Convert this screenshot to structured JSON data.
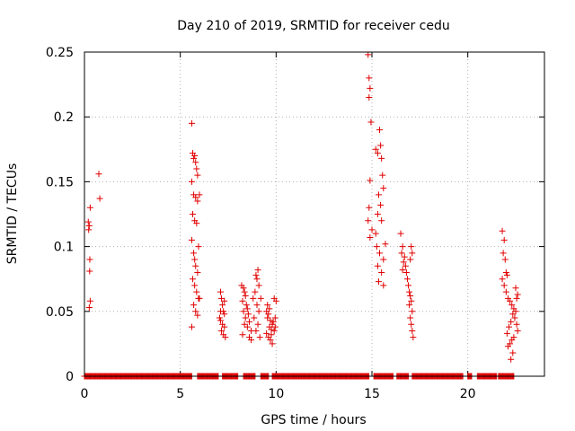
{
  "chart_data": {
    "type": "scatter",
    "title": "Day 210 of 2019, SRMTID for receiver cedu",
    "xlabel": "GPS time / hours",
    "ylabel": "SRMTID / TECUs",
    "xlim": [
      0,
      24
    ],
    "ylim": [
      0,
      0.25
    ],
    "xticks": [
      0,
      5,
      10,
      15,
      20
    ],
    "yticks": [
      0,
      0.05,
      0.1,
      0.15,
      0.2,
      0.25
    ],
    "xtick_labels": [
      "0",
      "5",
      "10",
      "15",
      "20"
    ],
    "ytick_labels": [
      "0",
      "0.05",
      "0.1",
      "0.15",
      "0.2",
      "0.25"
    ],
    "grid": true,
    "marker": "+",
    "color": "#e00000",
    "series": [
      {
        "name": "SRMTID",
        "points": [
          [
            0.2,
            0.119
          ],
          [
            0.25,
            0.116
          ],
          [
            0.22,
            0.113
          ],
          [
            0.3,
            0.13
          ],
          [
            0.28,
            0.09
          ],
          [
            0.27,
            0.081
          ],
          [
            0.3,
            0.058
          ],
          [
            0.25,
            0.053
          ],
          [
            0.75,
            0.156
          ],
          [
            0.8,
            0.137
          ],
          [
            5.6,
            0.195
          ],
          [
            5.65,
            0.172
          ],
          [
            5.7,
            0.168
          ],
          [
            5.75,
            0.17
          ],
          [
            5.8,
            0.165
          ],
          [
            5.85,
            0.16
          ],
          [
            5.9,
            0.155
          ],
          [
            5.6,
            0.15
          ],
          [
            5.7,
            0.14
          ],
          [
            5.8,
            0.138
          ],
          [
            5.9,
            0.135
          ],
          [
            6.0,
            0.14
          ],
          [
            5.65,
            0.125
          ],
          [
            5.75,
            0.12
          ],
          [
            5.85,
            0.118
          ],
          [
            5.95,
            0.1
          ],
          [
            5.6,
            0.105
          ],
          [
            5.7,
            0.095
          ],
          [
            5.8,
            0.085
          ],
          [
            5.9,
            0.08
          ],
          [
            5.65,
            0.075
          ],
          [
            5.75,
            0.07
          ],
          [
            5.85,
            0.065
          ],
          [
            5.95,
            0.06
          ],
          [
            5.7,
            0.055
          ],
          [
            5.8,
            0.05
          ],
          [
            5.9,
            0.047
          ],
          [
            5.6,
            0.038
          ],
          [
            6.0,
            0.06
          ],
          [
            5.75,
            0.09
          ],
          [
            7.1,
            0.065
          ],
          [
            7.15,
            0.06
          ],
          [
            7.2,
            0.055
          ],
          [
            7.25,
            0.05
          ],
          [
            7.3,
            0.048
          ],
          [
            7.05,
            0.045
          ],
          [
            7.1,
            0.043
          ],
          [
            7.2,
            0.04
          ],
          [
            7.3,
            0.038
          ],
          [
            7.15,
            0.035
          ],
          [
            7.25,
            0.032
          ],
          [
            7.35,
            0.03
          ],
          [
            7.1,
            0.05
          ],
          [
            7.3,
            0.058
          ],
          [
            8.2,
            0.07
          ],
          [
            8.3,
            0.068
          ],
          [
            8.35,
            0.065
          ],
          [
            8.4,
            0.062
          ],
          [
            8.25,
            0.058
          ],
          [
            8.45,
            0.055
          ],
          [
            8.5,
            0.052
          ],
          [
            8.3,
            0.05
          ],
          [
            8.55,
            0.048
          ],
          [
            8.4,
            0.045
          ],
          [
            8.6,
            0.042
          ],
          [
            8.35,
            0.04
          ],
          [
            8.5,
            0.038
          ],
          [
            8.7,
            0.035
          ],
          [
            8.25,
            0.032
          ],
          [
            8.6,
            0.03
          ],
          [
            8.8,
            0.06
          ],
          [
            8.9,
            0.065
          ],
          [
            9.0,
            0.075
          ],
          [
            9.05,
            0.082
          ],
          [
            8.95,
            0.078
          ],
          [
            9.1,
            0.07
          ],
          [
            9.0,
            0.055
          ],
          [
            9.1,
            0.05
          ],
          [
            8.85,
            0.045
          ],
          [
            9.05,
            0.04
          ],
          [
            8.95,
            0.035
          ],
          [
            9.15,
            0.03
          ],
          [
            8.7,
            0.028
          ],
          [
            9.2,
            0.06
          ],
          [
            9.5,
            0.05
          ],
          [
            9.6,
            0.048
          ],
          [
            9.55,
            0.045
          ],
          [
            9.7,
            0.043
          ],
          [
            9.8,
            0.04
          ],
          [
            9.65,
            0.038
          ],
          [
            9.75,
            0.036
          ],
          [
            9.9,
            0.035
          ],
          [
            9.5,
            0.033
          ],
          [
            9.6,
            0.03
          ],
          [
            9.7,
            0.028
          ],
          [
            9.8,
            0.025
          ],
          [
            9.85,
            0.042
          ],
          [
            9.95,
            0.045
          ],
          [
            9.55,
            0.055
          ],
          [
            9.9,
            0.06
          ],
          [
            10.0,
            0.058
          ],
          [
            9.65,
            0.052
          ],
          [
            9.75,
            0.032
          ],
          [
            9.95,
            0.038
          ],
          [
            14.8,
            0.248
          ],
          [
            14.85,
            0.23
          ],
          [
            14.9,
            0.222
          ],
          [
            14.85,
            0.215
          ],
          [
            14.95,
            0.196
          ],
          [
            14.9,
            0.151
          ],
          [
            14.85,
            0.13
          ],
          [
            14.8,
            0.12
          ],
          [
            15.0,
            0.113
          ],
          [
            14.9,
            0.107
          ],
          [
            15.2,
            0.175
          ],
          [
            15.3,
            0.172
          ],
          [
            15.4,
            0.19
          ],
          [
            15.45,
            0.178
          ],
          [
            15.5,
            0.168
          ],
          [
            15.55,
            0.155
          ],
          [
            15.6,
            0.145
          ],
          [
            15.35,
            0.14
          ],
          [
            15.45,
            0.132
          ],
          [
            15.3,
            0.125
          ],
          [
            15.5,
            0.12
          ],
          [
            15.2,
            0.11
          ],
          [
            15.25,
            0.1
          ],
          [
            15.4,
            0.095
          ],
          [
            15.6,
            0.09
          ],
          [
            15.3,
            0.085
          ],
          [
            15.5,
            0.08
          ],
          [
            15.35,
            0.073
          ],
          [
            15.6,
            0.07
          ],
          [
            15.7,
            0.102
          ],
          [
            16.5,
            0.11
          ],
          [
            16.6,
            0.1
          ],
          [
            16.55,
            0.095
          ],
          [
            16.7,
            0.092
          ],
          [
            16.65,
            0.088
          ],
          [
            16.75,
            0.085
          ],
          [
            16.6,
            0.082
          ],
          [
            16.8,
            0.08
          ],
          [
            16.85,
            0.075
          ],
          [
            16.9,
            0.07
          ],
          [
            16.95,
            0.065
          ],
          [
            17.0,
            0.062
          ],
          [
            17.05,
            0.058
          ],
          [
            16.95,
            0.055
          ],
          [
            17.1,
            0.05
          ],
          [
            17.0,
            0.045
          ],
          [
            17.05,
            0.04
          ],
          [
            17.1,
            0.035
          ],
          [
            17.15,
            0.03
          ],
          [
            17.05,
            0.1
          ],
          [
            17.1,
            0.095
          ],
          [
            17.0,
            0.09
          ],
          [
            21.8,
            0.112
          ],
          [
            21.9,
            0.105
          ],
          [
            21.85,
            0.095
          ],
          [
            21.95,
            0.09
          ],
          [
            22.0,
            0.08
          ],
          [
            22.05,
            0.078
          ],
          [
            21.8,
            0.075
          ],
          [
            21.9,
            0.07
          ],
          [
            22.0,
            0.065
          ],
          [
            22.1,
            0.06
          ],
          [
            22.2,
            0.058
          ],
          [
            22.3,
            0.055
          ],
          [
            22.4,
            0.052
          ],
          [
            22.5,
            0.05
          ],
          [
            22.35,
            0.048
          ],
          [
            22.45,
            0.045
          ],
          [
            22.25,
            0.042
          ],
          [
            22.55,
            0.04
          ],
          [
            22.15,
            0.038
          ],
          [
            22.6,
            0.035
          ],
          [
            22.05,
            0.033
          ],
          [
            22.4,
            0.03
          ],
          [
            22.3,
            0.028
          ],
          [
            22.2,
            0.025
          ],
          [
            22.1,
            0.023
          ],
          [
            22.35,
            0.018
          ],
          [
            22.25,
            0.013
          ],
          [
            22.5,
            0.068
          ],
          [
            22.6,
            0.063
          ],
          [
            22.55,
            0.06
          ]
        ],
        "zero_ranges": [
          [
            0,
            5.6
          ],
          [
            5.9,
            7.0
          ],
          [
            7.2,
            8.0
          ],
          [
            8.3,
            8.9
          ],
          [
            9.2,
            9.6
          ],
          [
            9.8,
            14.85
          ],
          [
            15.1,
            16.1
          ],
          [
            16.3,
            16.9
          ],
          [
            17.1,
            19.75
          ],
          [
            20.0,
            20.2
          ],
          [
            20.5,
            21.5
          ],
          [
            21.6,
            22.4
          ]
        ]
      }
    ]
  }
}
